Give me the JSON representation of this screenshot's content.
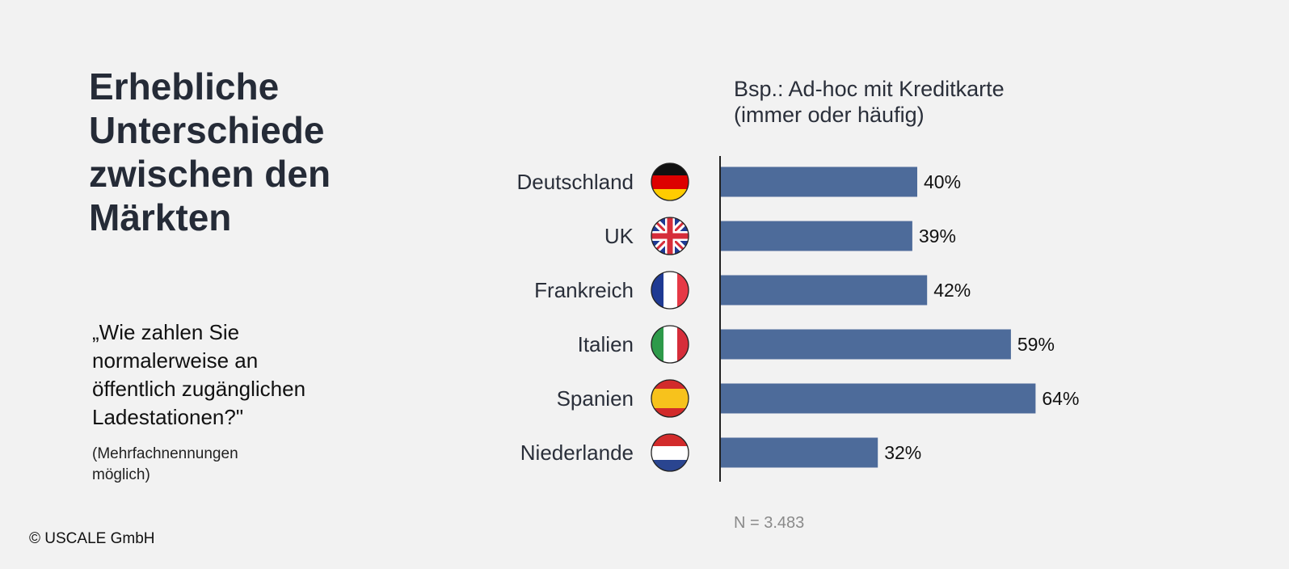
{
  "headline": "Erhebliche\nUnterschiede\nzwischen den\nMärkten",
  "question": "„Wie zahlen Sie\nnormalerweise an\nöffentlich zugänglichen\nLadestationen?\"",
  "note": "(Mehrfachnennungen\nmöglich)",
  "copyright": "© USCALE GmbH",
  "colors": {
    "background": "#f2f2f2",
    "bar": "#4d6b9a",
    "axis": "#222222"
  },
  "chart_data": {
    "type": "bar",
    "orientation": "horizontal",
    "title": "Bsp.: Ad-hoc mit Kreditkarte\n(immer oder häufig)",
    "categories": [
      "Deutschland",
      "UK",
      "Frankreich",
      "Italien",
      "Spanien",
      "Niederlande"
    ],
    "values": [
      40,
      39,
      42,
      59,
      64,
      32
    ],
    "value_labels": [
      "40%",
      "39%",
      "42%",
      "59%",
      "64%",
      "32%"
    ],
    "flags": [
      "germany-flag",
      "uk-flag",
      "france-flag",
      "italy-flag",
      "spain-flag",
      "netherlands-flag"
    ],
    "unit": "%",
    "xlim": [
      0,
      100
    ],
    "grid": false,
    "legend": "none",
    "footnote": "N = 3.483"
  }
}
